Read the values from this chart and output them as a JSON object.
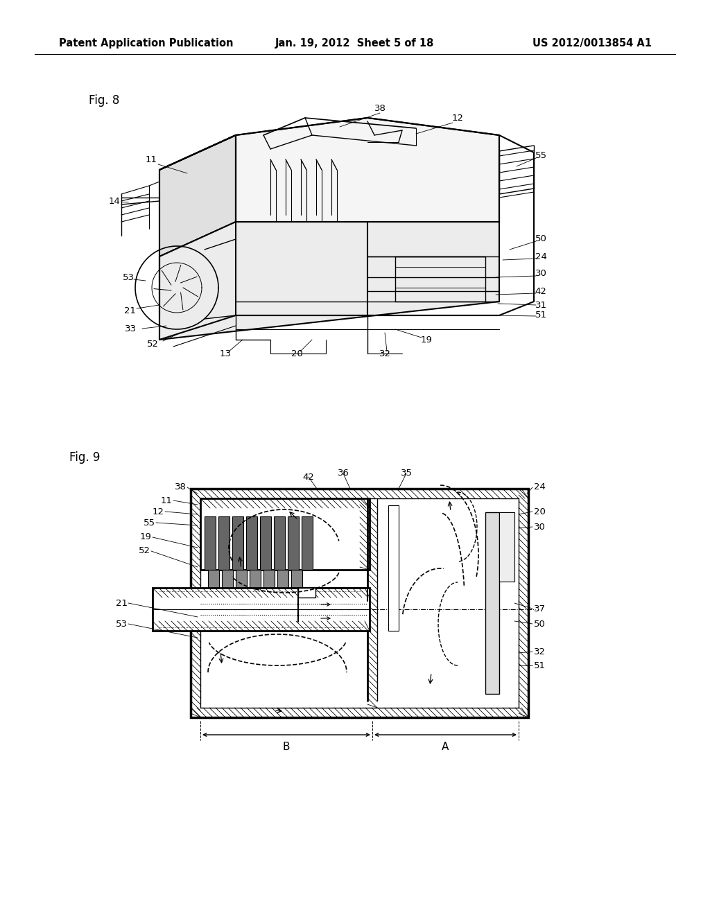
{
  "background_color": "#ffffff",
  "page_width": 10.24,
  "page_height": 13.2,
  "header": {
    "left": "Patent Application Publication",
    "center": "Jan. 19, 2012  Sheet 5 of 18",
    "right": "US 2012/0013854 A1",
    "fontsize": 10.5,
    "fontweight": "bold"
  }
}
